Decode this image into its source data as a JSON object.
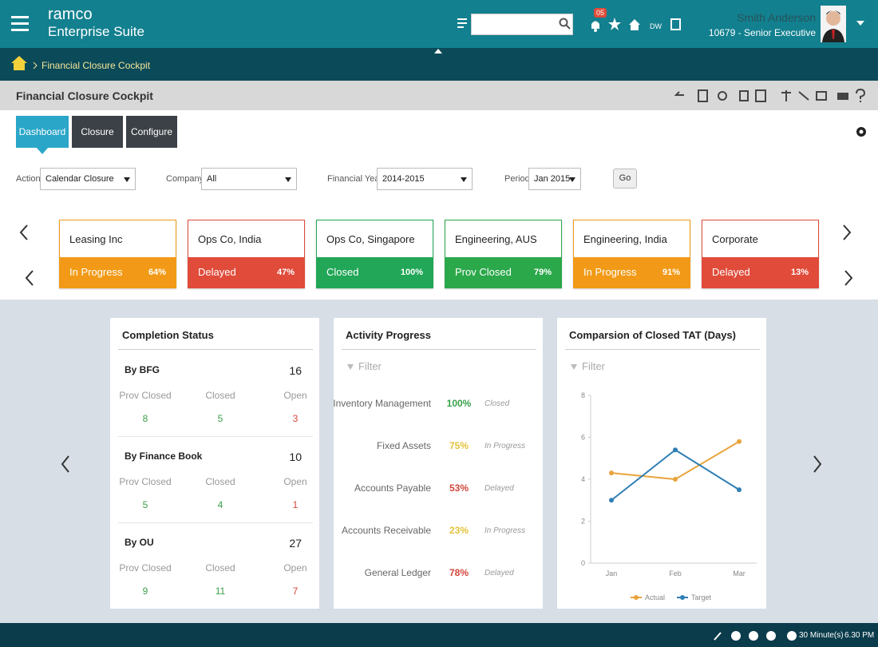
{
  "header": {
    "brand": "ramco",
    "product": "Enterprise Suite",
    "notification_count": "05",
    "dw": "DW",
    "user_name": "Smith Anderson",
    "user_role": "10679 - Senior Executive"
  },
  "breadcrumb": "Financial Closure Cockpit",
  "page_title": "Financial Closure Cockpit",
  "tabs": [
    "Dashboard",
    "Closure",
    "Configure"
  ],
  "filters": [
    {
      "label": "Action",
      "value": "Calendar Closure"
    },
    {
      "label": "Company",
      "value": "All"
    },
    {
      "label": "Financial Year",
      "value": "2014-2015"
    },
    {
      "label": "Period",
      "value": "Jan 2015"
    }
  ],
  "go": "Go",
  "companies": [
    {
      "name": "Leasing Inc",
      "status": "In Progress",
      "percent": "64%",
      "color": "#f29a17"
    },
    {
      "name": "Ops Co, India",
      "status": "Delayed",
      "percent": "47%",
      "color": "#e04b3a"
    },
    {
      "name": "Ops Co, Singapore",
      "status": "Closed",
      "percent": "100%",
      "color": "#21a757"
    },
    {
      "name": "Engineering, AUS",
      "status": "Prov Closed",
      "percent": "79%",
      "color": "#2ba84a"
    },
    {
      "name": "Engineering, India",
      "status": "In Progress",
      "percent": "91%",
      "color": "#f29a17"
    },
    {
      "name": "Corporate",
      "status": "Delayed",
      "percent": "13%",
      "color": "#e04b3a"
    }
  ],
  "completion_status": {
    "title": "Completion Status",
    "groups": [
      {
        "label": "By BFG",
        "total": 16,
        "columns": [
          "Prov Closed",
          "Closed",
          "Open"
        ],
        "counts": [
          8,
          5,
          3
        ]
      },
      {
        "label": "By Finance Book",
        "total": 10,
        "columns": [
          "Prov Closed",
          "Closed",
          "Open"
        ],
        "counts": [
          5,
          4,
          1
        ]
      },
      {
        "label": "By OU",
        "total": 27,
        "columns": [
          "Prov Closed",
          "Closed",
          "Open"
        ],
        "counts": [
          9,
          11,
          7
        ]
      }
    ]
  },
  "activity_progress": {
    "title": "Activity Progress",
    "filter": "Filter",
    "rows": [
      {
        "name": "Inventory Management",
        "percent": "100%",
        "status": "Closed",
        "color": "#3aa04a"
      },
      {
        "name": "Fixed Assets",
        "percent": "75%",
        "status": "In Progress",
        "color": "#e3c23a"
      },
      {
        "name": "Accounts Payable",
        "percent": "53%",
        "status": "Delayed",
        "color": "#d2463a"
      },
      {
        "name": "Accounts Receivable",
        "percent": "23%",
        "status": "In Progress",
        "color": "#e3c23a"
      },
      {
        "name": "General Ledger",
        "percent": "78%",
        "status": "Delayed",
        "color": "#d2463a"
      }
    ]
  },
  "tat_panel": {
    "filter": "Filter"
  },
  "chart_data": {
    "type": "line",
    "title": "Comparsion of Closed TAT (Days)",
    "categories": [
      "Jan",
      "Feb",
      "Mar"
    ],
    "series": [
      {
        "name": "Actual",
        "color": "#e8a43a",
        "values": [
          4.3,
          4.0,
          5.8
        ]
      },
      {
        "name": "Target",
        "color": "#2f7fb5",
        "values": [
          3.0,
          5.4,
          3.5
        ]
      }
    ],
    "ylim": [
      0,
      8
    ],
    "yticks": [
      0,
      2,
      4,
      6,
      8
    ]
  },
  "footer": {
    "session": "30 Minute(s)",
    "time": "6.30 PM"
  }
}
